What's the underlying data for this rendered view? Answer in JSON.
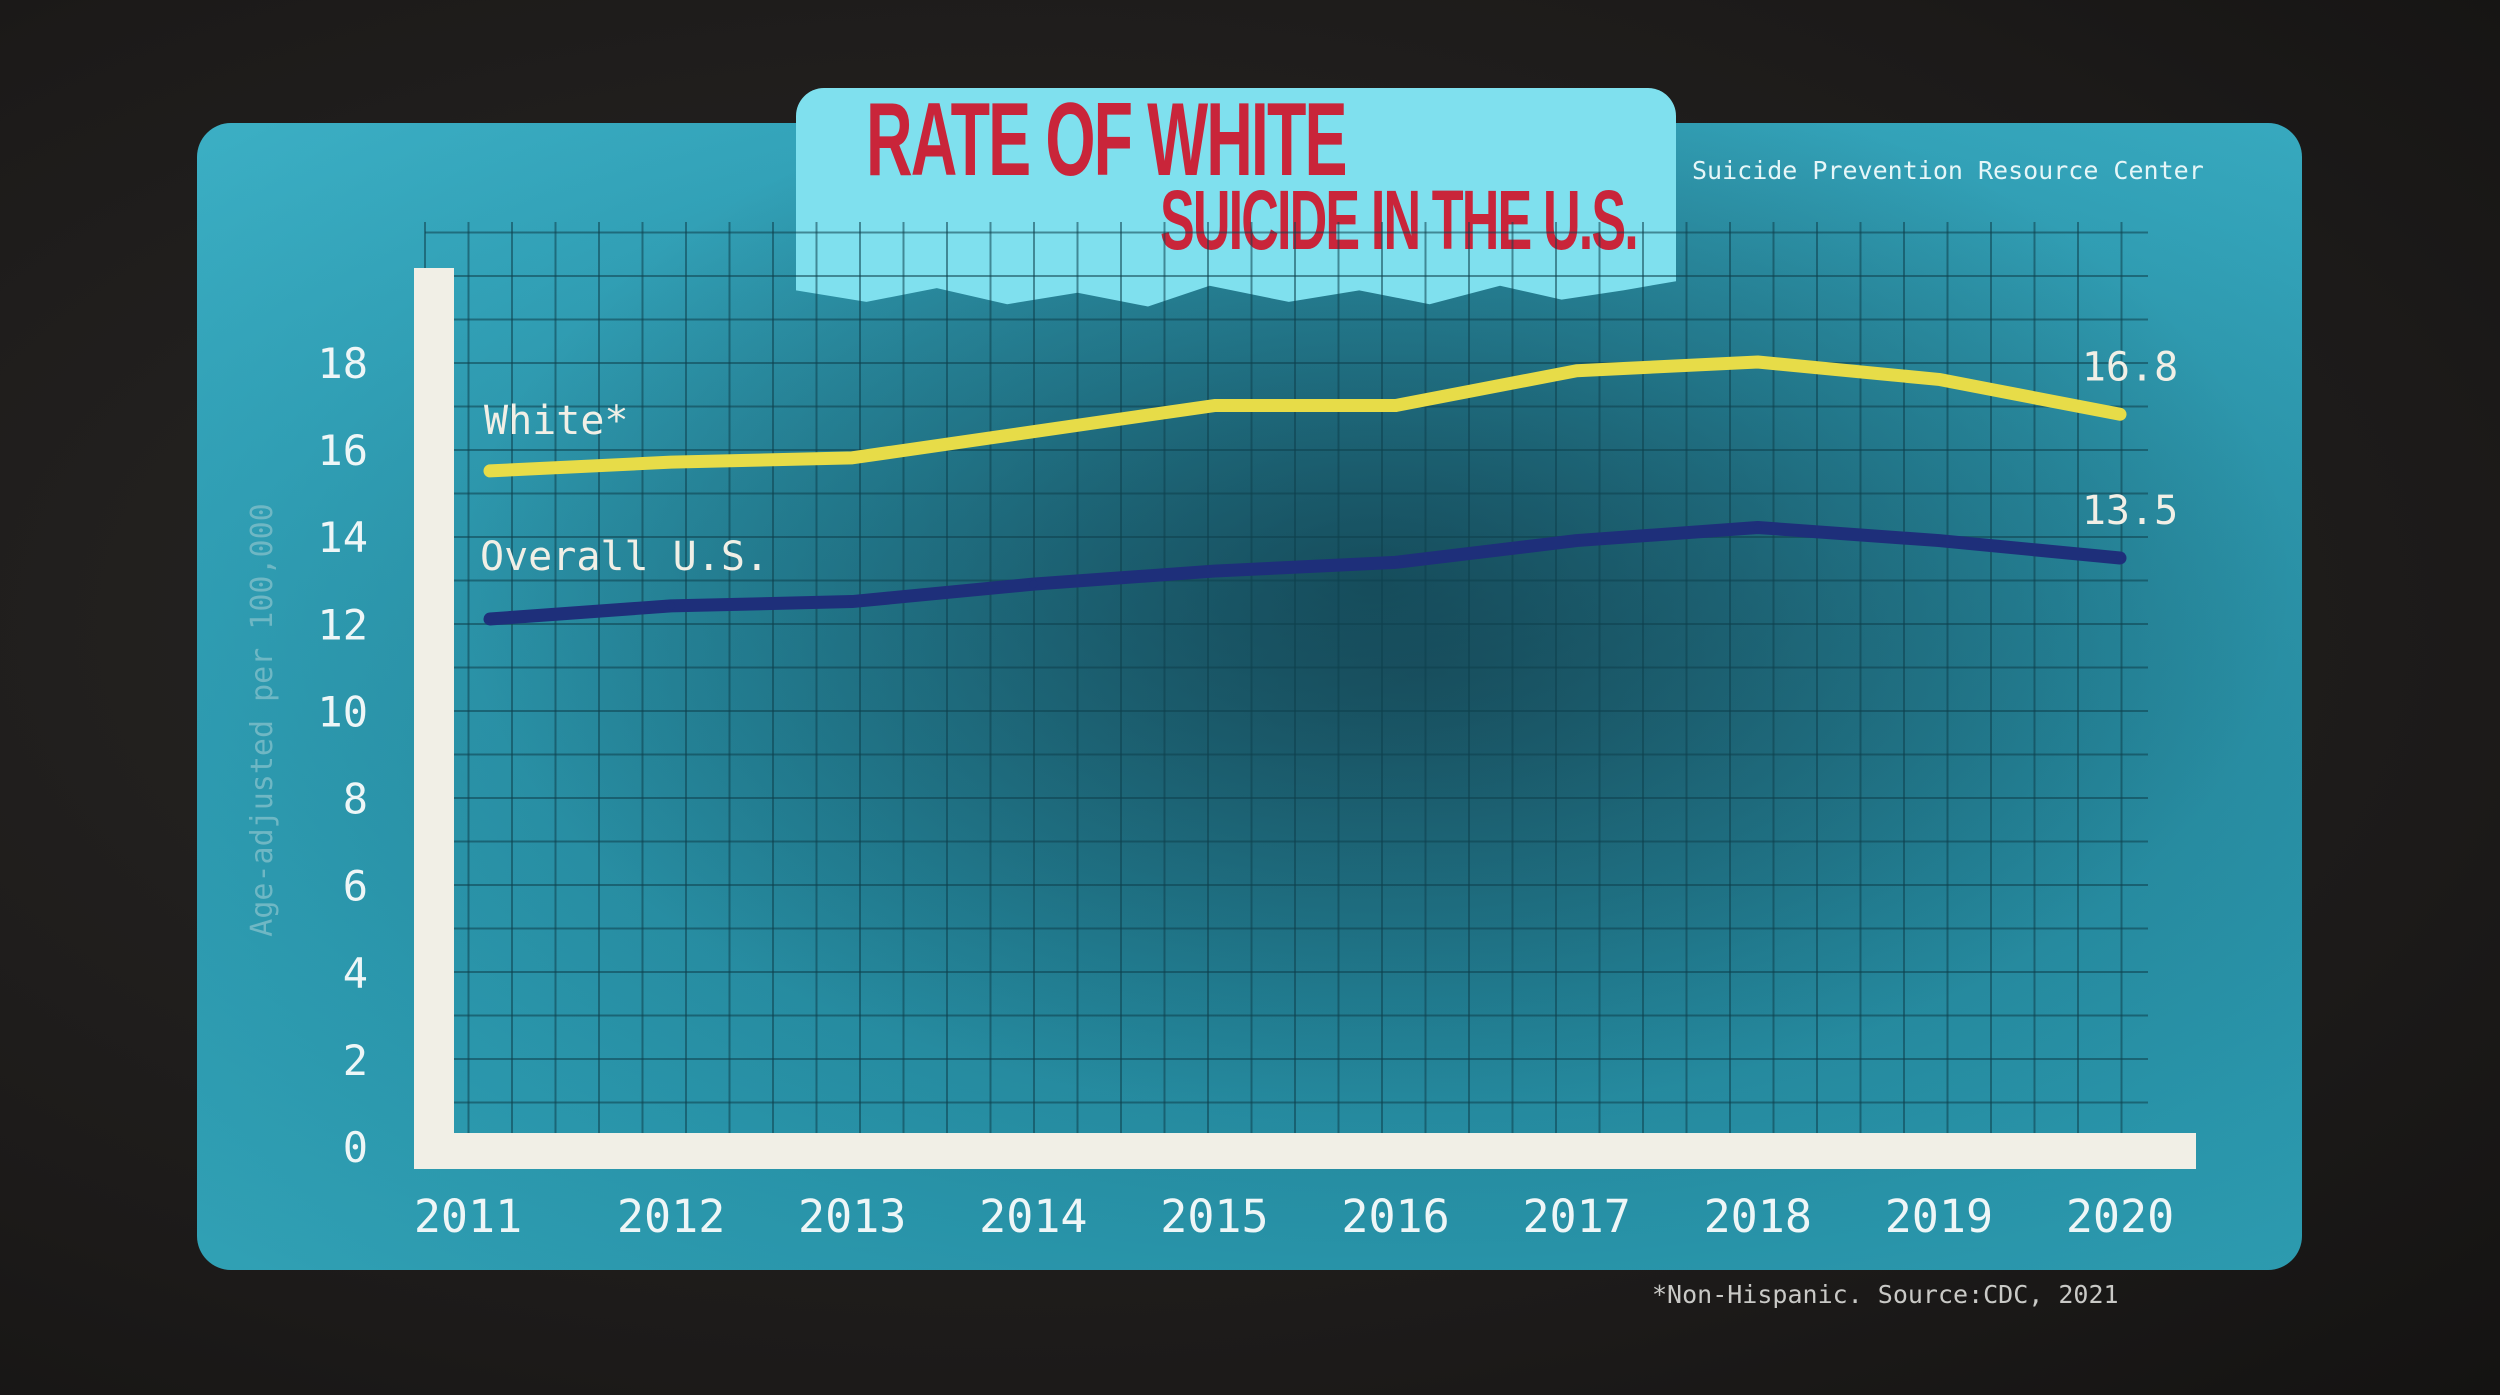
{
  "header": {
    "title_line1": "RATE OF WHITE",
    "title_line2": "SUICIDE IN THE U.S.",
    "source": "Suicide Prevention Resource Center"
  },
  "footnote": "*Non-Hispanic. Source:CDC, 2021",
  "colors": {
    "white_series": "#e7dc48",
    "overall_series": "#1e2f7a",
    "title_red": "#c9253a",
    "panel_teal": "#2b9fb6"
  },
  "chart_data": {
    "type": "line",
    "title": "RATE OF WHITE SUICIDE IN THE U.S.",
    "xlabel": "",
    "ylabel": "Age-adjusted per 100,000",
    "x": [
      "2011",
      "2012",
      "2013",
      "2014",
      "2015",
      "2016",
      "2017",
      "2018",
      "2019",
      "2020"
    ],
    "ylim": [
      0,
      18
    ],
    "yticks": [
      "0",
      "2",
      "4",
      "6",
      "8",
      "10",
      "12",
      "14",
      "16",
      "18"
    ],
    "grid": true,
    "series": [
      {
        "name": "White*",
        "values": [
          15.5,
          15.7,
          15.8,
          16.4,
          17.0,
          17.0,
          17.8,
          18.0,
          17.6,
          16.8
        ],
        "end_label": "16.8"
      },
      {
        "name": "Overall U.S.",
        "values": [
          12.1,
          12.4,
          12.5,
          12.9,
          13.2,
          13.4,
          13.9,
          14.2,
          13.9,
          13.5
        ],
        "end_label": "13.5"
      }
    ]
  }
}
